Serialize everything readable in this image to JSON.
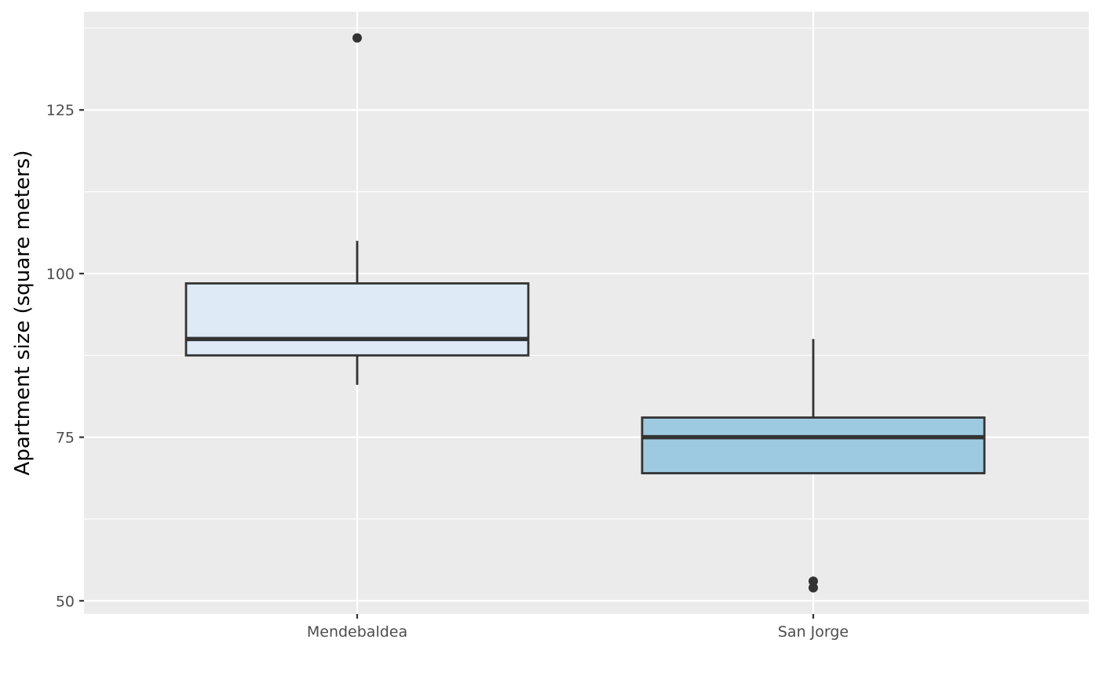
{
  "chart_data": {
    "type": "box",
    "xlabel": "",
    "ylabel": "Apartment size (square meters)",
    "ylim": [
      48,
      140
    ],
    "y_major_ticks": [
      50,
      75,
      100,
      125
    ],
    "y_minor_ticks": [
      62.5,
      87.5,
      112.5,
      137.5
    ],
    "grid": true,
    "categories": [
      "Mendebaldea",
      "San Jorge"
    ],
    "boxes": [
      {
        "category": "Mendebaldea",
        "fill": "#deebf7",
        "whisker_low": 83,
        "q1": 87.5,
        "median": 90,
        "q3": 98.5,
        "whisker_high": 105,
        "outliers": [
          136
        ]
      },
      {
        "category": "San Jorge",
        "fill": "#9ecae1",
        "whisker_low": 69.5,
        "q1": 69.5,
        "median": 75,
        "q3": 78,
        "whisker_high": 90,
        "outliers": [
          53,
          52
        ]
      }
    ],
    "colors": {
      "panel_background": "#ebebeb",
      "grid": "#ffffff",
      "box_stroke": "#333333",
      "outlier": "#333333",
      "tick_text": "#4d4d4d"
    }
  }
}
